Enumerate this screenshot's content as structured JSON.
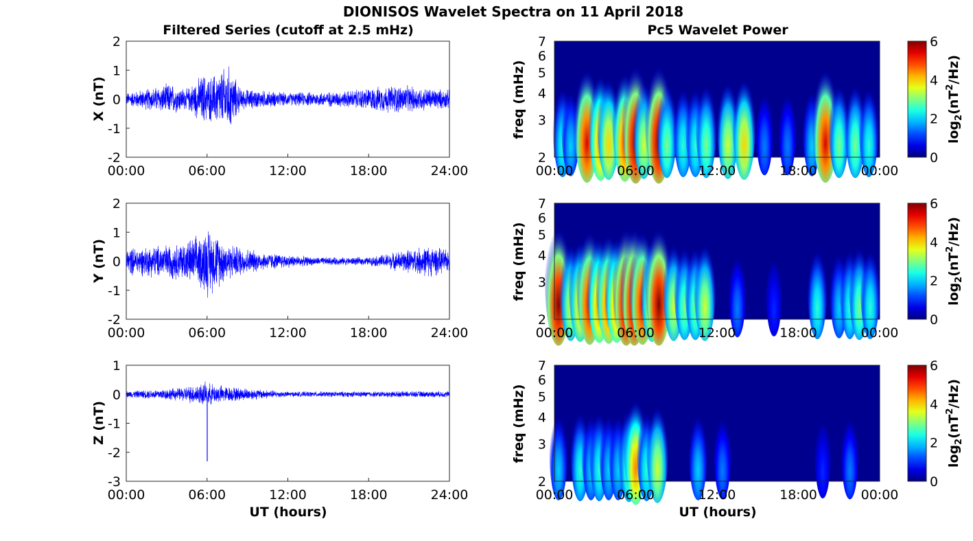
{
  "figure_title": "DIONISOS Wavelet Spectra on 11 April 2018",
  "left_title": "Filtered Series (cutoff at 2.5 mHz)",
  "right_title": "Pc5 Wavelet Power",
  "xlabel": "UT (hours)",
  "chart_data": [
    {
      "type": "line",
      "name": "X component",
      "ylabel": "X (nT)",
      "xlim_hours": [
        0,
        24
      ],
      "ylim": [
        -2,
        2
      ],
      "xticks": [
        "00:00",
        "06:00",
        "12:00",
        "18:00",
        "24:00"
      ],
      "yticks": [
        "2",
        "1",
        "0",
        "-1",
        "-2"
      ],
      "color": "#0000ff",
      "envelope": [
        {
          "t": 0,
          "amp": 0.25
        },
        {
          "t": 2,
          "amp": 0.45
        },
        {
          "t": 3.2,
          "amp": 0.6
        },
        {
          "t": 4.5,
          "amp": 0.4
        },
        {
          "t": 5.8,
          "amp": 1.0
        },
        {
          "t": 6.0,
          "amp": 0.8
        },
        {
          "t": 7.6,
          "amp": 1.3
        },
        {
          "t": 8.5,
          "amp": 0.4
        },
        {
          "t": 12,
          "amp": 0.25
        },
        {
          "t": 16,
          "amp": 0.3
        },
        {
          "t": 20,
          "amp": 0.55
        },
        {
          "t": 24,
          "amp": 0.35
        }
      ]
    },
    {
      "type": "line",
      "name": "Y component",
      "ylabel": "Y (nT)",
      "xlim_hours": [
        0,
        24
      ],
      "ylim": [
        -2,
        2
      ],
      "xticks": [
        "00:00",
        "06:00",
        "12:00",
        "18:00",
        "24:00"
      ],
      "yticks": [
        "2",
        "1",
        "0",
        "-1",
        "-2"
      ],
      "color": "#0000ff",
      "envelope": [
        {
          "t": 0,
          "amp": 0.5
        },
        {
          "t": 2,
          "amp": 0.6
        },
        {
          "t": 4,
          "amp": 0.7
        },
        {
          "t": 5.5,
          "amp": 1.0
        },
        {
          "t": 6.0,
          "amp": 1.35
        },
        {
          "t": 7.5,
          "amp": 0.7
        },
        {
          "t": 10,
          "amp": 0.35
        },
        {
          "t": 14,
          "amp": 0.15
        },
        {
          "t": 18,
          "amp": 0.15
        },
        {
          "t": 22.5,
          "amp": 0.6
        },
        {
          "t": 24,
          "amp": 0.4
        }
      ]
    },
    {
      "type": "line",
      "name": "Z component",
      "ylabel": "Z (nT)",
      "xlim_hours": [
        0,
        24
      ],
      "ylim": [
        -3,
        1
      ],
      "xticks": [
        "00:00",
        "06:00",
        "12:00",
        "18:00",
        "24:00"
      ],
      "yticks": [
        "1",
        "0",
        "-1",
        "-2",
        "-3"
      ],
      "color": "#0000ff",
      "spike": {
        "t": 6.0,
        "min": -2.3
      },
      "envelope": [
        {
          "t": 0,
          "amp": 0.12
        },
        {
          "t": 4,
          "amp": 0.25
        },
        {
          "t": 5.8,
          "amp": 0.45
        },
        {
          "t": 7.5,
          "amp": 0.3
        },
        {
          "t": 12,
          "amp": 0.1
        },
        {
          "t": 24,
          "amp": 0.12
        }
      ]
    },
    {
      "type": "heatmap",
      "name": "X wavelet power",
      "ylabel": "freq (mHz)",
      "ylim_mHz": [
        2,
        7
      ],
      "yticks": [
        "7",
        "6",
        "5",
        "4",
        "3",
        "2"
      ],
      "xticks": [
        "00:00",
        "06:00",
        "12:00",
        "18:00",
        "00:00"
      ],
      "colorbar": {
        "label": "log2(nT2/Hz)",
        "range": [
          0,
          6
        ],
        "ticks": [
          "6",
          "4",
          "2",
          "0"
        ]
      },
      "bursts_hours_power": [
        [
          0.6,
          2.5
        ],
        [
          1.2,
          2.0
        ],
        [
          2.4,
          5.5
        ],
        [
          3.4,
          4.5
        ],
        [
          4.0,
          4.0
        ],
        [
          5.2,
          5.0
        ],
        [
          6.0,
          6.0
        ],
        [
          6.6,
          3.5
        ],
        [
          7.7,
          6.0
        ],
        [
          8.3,
          3.0
        ],
        [
          9.5,
          2.5
        ],
        [
          10.4,
          2.5
        ],
        [
          11.2,
          3.0
        ],
        [
          12.8,
          3.5
        ],
        [
          14.0,
          4.0
        ],
        [
          15.5,
          1.5
        ],
        [
          17.2,
          1.5
        ],
        [
          19.0,
          2.0
        ],
        [
          20.0,
          5.5
        ],
        [
          21.0,
          3.0
        ],
        [
          22.2,
          3.0
        ],
        [
          23.2,
          2.5
        ]
      ]
    },
    {
      "type": "heatmap",
      "name": "Y wavelet power",
      "ylabel": "freq (mHz)",
      "ylim_mHz": [
        2,
        7
      ],
      "yticks": [
        "7",
        "6",
        "5",
        "4",
        "3",
        "2"
      ],
      "xticks": [
        "00:00",
        "06:00",
        "12:00",
        "18:00",
        "00:00"
      ],
      "colorbar": {
        "label": "log2(nT2/Hz)",
        "range": [
          0,
          6
        ],
        "ticks": [
          "6",
          "4",
          "2",
          "0"
        ]
      },
      "bursts_hours_power": [
        [
          0.3,
          6.0
        ],
        [
          1.2,
          3.5
        ],
        [
          1.9,
          4.0
        ],
        [
          2.6,
          5.5
        ],
        [
          3.3,
          4.5
        ],
        [
          4.0,
          5.0
        ],
        [
          4.6,
          4.5
        ],
        [
          5.3,
          6.0
        ],
        [
          5.9,
          6.0
        ],
        [
          6.5,
          5.5
        ],
        [
          7.2,
          4.0
        ],
        [
          7.7,
          6.0
        ],
        [
          8.8,
          3.5
        ],
        [
          9.6,
          3.0
        ],
        [
          10.4,
          3.0
        ],
        [
          11.1,
          3.5
        ],
        [
          13.5,
          1.5
        ],
        [
          16.2,
          1.0
        ],
        [
          19.4,
          2.5
        ],
        [
          21.0,
          2.0
        ],
        [
          21.8,
          2.5
        ],
        [
          22.5,
          3.0
        ],
        [
          23.3,
          2.5
        ]
      ]
    },
    {
      "type": "heatmap",
      "name": "Z wavelet power",
      "ylabel": "freq (mHz)",
      "ylim_mHz": [
        2,
        7
      ],
      "yticks": [
        "7",
        "6",
        "5",
        "4",
        "3",
        "2"
      ],
      "xticks": [
        "00:00",
        "06:00",
        "12:00",
        "18:00",
        "00:00"
      ],
      "colorbar": {
        "label": "log2(nT2/Hz)",
        "range": [
          0,
          6
        ],
        "ticks": [
          "6",
          "4",
          "2",
          "0"
        ]
      },
      "bursts_hours_power": [
        [
          0.3,
          2.0
        ],
        [
          1.9,
          2.5
        ],
        [
          2.7,
          2.0
        ],
        [
          3.3,
          2.5
        ],
        [
          4.0,
          2.0
        ],
        [
          4.7,
          2.0
        ],
        [
          5.5,
          3.0
        ],
        [
          6.0,
          4.5
        ],
        [
          6.8,
          2.5
        ],
        [
          7.6,
          3.5
        ],
        [
          10.6,
          2.0
        ],
        [
          12.4,
          1.5
        ],
        [
          19.8,
          1.0
        ],
        [
          21.8,
          1.5
        ]
      ]
    }
  ]
}
